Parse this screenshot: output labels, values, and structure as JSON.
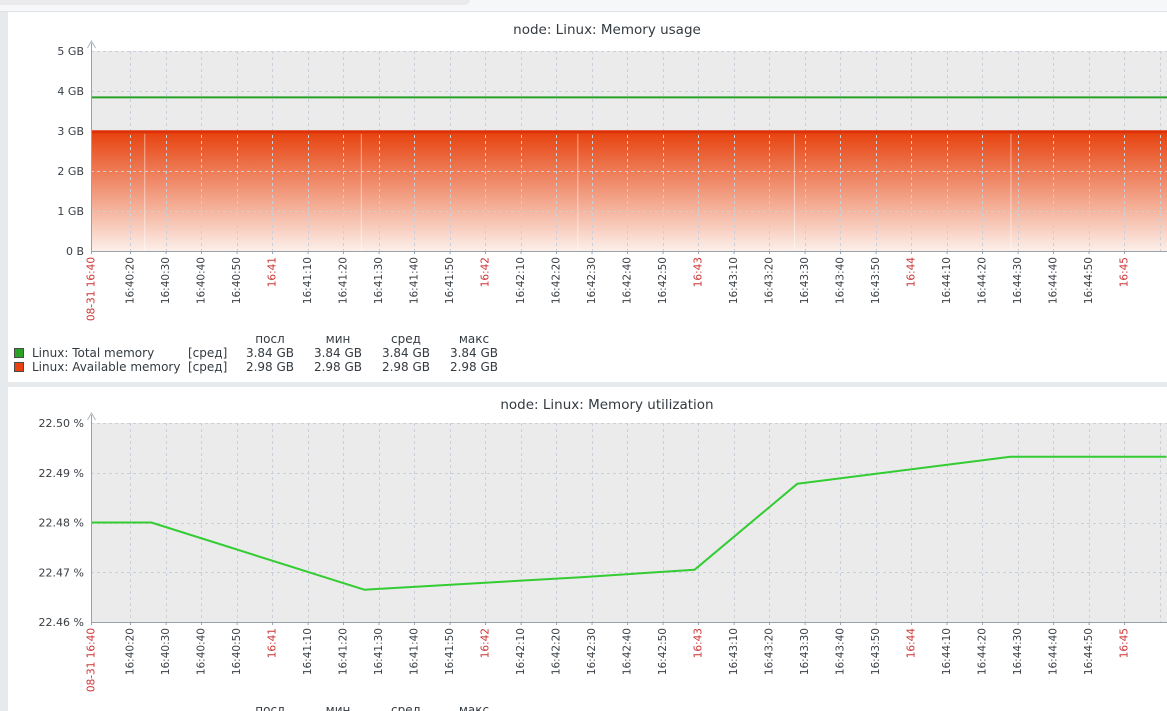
{
  "colors": {
    "plot_bg": "#ebebeb",
    "grid": "#c9d0d9",
    "axis": "#98a2ac",
    "axis_arrow": "#aeb7c0",
    "tick_text": "#383e44",
    "tick_text_red": "#cc3434",
    "title_text": "#333a40",
    "area_top": "#e7430f",
    "area_bottom": "#fcefe9",
    "area_line": "#de3109",
    "total_memory_green": "#2aa127",
    "available_memory_red": "#e8430f",
    "utilization_green": "#33cc33"
  },
  "time_axis": {
    "ticks": [
      {
        "sec": 9,
        "label": "08-31 16:40",
        "red": true
      },
      {
        "sec": 20,
        "label": "16:40:20"
      },
      {
        "sec": 30,
        "label": "16:40:30"
      },
      {
        "sec": 40,
        "label": "16:40:40"
      },
      {
        "sec": 50,
        "label": "16:40:50"
      },
      {
        "sec": 60,
        "label": "16:41",
        "red": true
      },
      {
        "sec": 70,
        "label": "16:41:10"
      },
      {
        "sec": 80,
        "label": "16:41:20"
      },
      {
        "sec": 90,
        "label": "16:41:30"
      },
      {
        "sec": 100,
        "label": "16:41:40"
      },
      {
        "sec": 110,
        "label": "16:41:50"
      },
      {
        "sec": 120,
        "label": "16:42",
        "red": true
      },
      {
        "sec": 130,
        "label": "16:42:10"
      },
      {
        "sec": 140,
        "label": "16:42:20"
      },
      {
        "sec": 150,
        "label": "16:42:30"
      },
      {
        "sec": 160,
        "label": "16:42:40"
      },
      {
        "sec": 170,
        "label": "16:42:50"
      },
      {
        "sec": 180,
        "label": "16:43",
        "red": true
      },
      {
        "sec": 190,
        "label": "16:43:10"
      },
      {
        "sec": 200,
        "label": "16:43:20"
      },
      {
        "sec": 210,
        "label": "16:43:30"
      },
      {
        "sec": 220,
        "label": "16:43:40"
      },
      {
        "sec": 230,
        "label": "16:43:50"
      },
      {
        "sec": 240,
        "label": "16:44",
        "red": true
      },
      {
        "sec": 250,
        "label": "16:44:10"
      },
      {
        "sec": 260,
        "label": "16:44:20"
      },
      {
        "sec": 270,
        "label": "16:44:30"
      },
      {
        "sec": 280,
        "label": "16:44:40"
      },
      {
        "sec": 290,
        "label": "16:44:50"
      },
      {
        "sec": 300,
        "label": "16:45",
        "red": true
      }
    ],
    "grid_extra": [
      310
    ]
  },
  "chart_data": [
    {
      "type": "area",
      "title": "node: Linux: Memory usage",
      "ylim": [
        0,
        5
      ],
      "y_ticks": [
        {
          "label": "5 GB",
          "value": 5
        },
        {
          "label": "4 GB",
          "value": 4
        },
        {
          "label": "3 GB",
          "value": 3
        },
        {
          "label": "2 GB",
          "value": 2
        },
        {
          "label": "1 GB",
          "value": 1
        },
        {
          "label": "0 B",
          "value": 0
        }
      ],
      "series": [
        {
          "name": "Linux: Total memory",
          "style": "line",
          "color": "#2aa127",
          "value": 3.84
        },
        {
          "name": "Linux: Available memory",
          "style": "gradient-area",
          "color": "#e8430f",
          "line_color": "#de3109",
          "value": 2.98,
          "gap_marks_sec": [
            24,
            85,
            146,
            207,
            268
          ]
        }
      ],
      "legend": {
        "headers": [
          "посл",
          "мин",
          "сред",
          "макс"
        ],
        "rows": [
          {
            "swatch": "#2aa127",
            "label": "Linux: Total memory",
            "fn": "[сред]",
            "values": [
              "3.84 GB",
              "3.84 GB",
              "3.84 GB",
              "3.84 GB"
            ]
          },
          {
            "swatch": "#e8430f",
            "label": "Linux: Available memory",
            "fn": "[сред]",
            "values": [
              "2.98 GB",
              "2.98 GB",
              "2.98 GB",
              "2.98 GB"
            ]
          }
        ]
      }
    },
    {
      "type": "line",
      "title": "node: Linux: Memory utilization",
      "ylim": [
        22.46,
        22.5
      ],
      "y_ticks": [
        {
          "label": "22.50 %",
          "value": 22.5
        },
        {
          "label": "22.49 %",
          "value": 22.49
        },
        {
          "label": "22.48 %",
          "value": 22.48
        },
        {
          "label": "22.47 %",
          "value": 22.47
        },
        {
          "label": "22.46 %",
          "value": 22.46
        }
      ],
      "series": [
        {
          "name": "Linux: Memory utilization",
          "style": "points",
          "color": "#33cc33",
          "points": [
            [
              9,
              22.48
            ],
            [
              26,
              22.48
            ],
            [
              86,
              22.4665
            ],
            [
              147,
              22.469
            ],
            [
              179,
              22.4705
            ],
            [
              208,
              22.4878
            ],
            [
              268,
              22.4932
            ],
            [
              312,
              22.4932
            ]
          ]
        }
      ],
      "legend": {
        "headers": [
          "посл",
          "мин",
          "сред",
          "макс"
        ],
        "rows": []
      }
    }
  ]
}
